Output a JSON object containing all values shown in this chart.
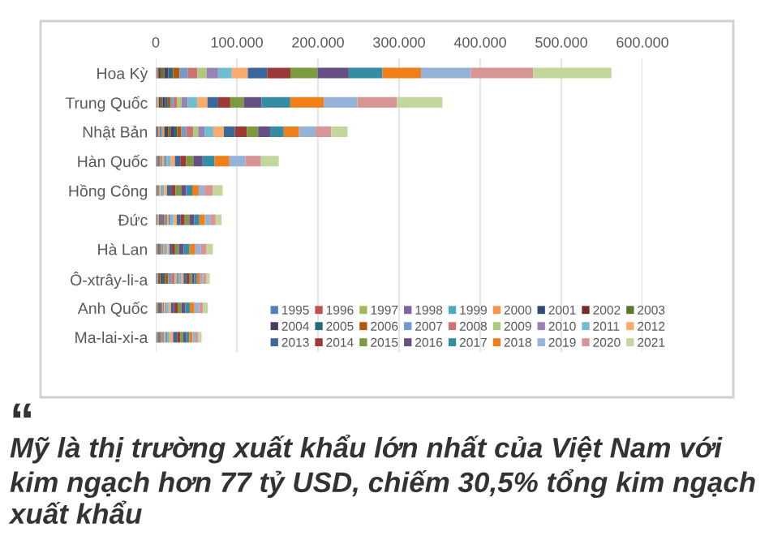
{
  "chart_data": {
    "type": "bar",
    "orientation": "horizontal",
    "stacked": true,
    "categories": [
      "Hoa Kỳ",
      "Trung Quốc",
      "Nhật Bản",
      "Hàn Quốc",
      "Hồng Công",
      "Đức",
      "Hà Lan",
      "Ô-xtrây-li-a",
      "Anh Quốc",
      "Ma-lai-xi-a"
    ],
    "xlim": [
      0,
      600000
    ],
    "xticks": [
      0,
      {
        "value": 100000,
        "label": "100.000"
      },
      {
        "value": 200000,
        "label": "200.000"
      },
      {
        "value": 300000,
        "label": "300.000"
      },
      {
        "value": 400000,
        "label": "400.000"
      },
      {
        "value": 500000,
        "label": "500.000"
      },
      {
        "value": 600000,
        "label": "600.000"
      }
    ],
    "grid": "x",
    "legend": "bottom right",
    "series": [
      {
        "name": "1995",
        "color": "#4f81bd",
        "values": [
          170,
          360,
          1460,
          240,
          150,
          400,
          150,
          50,
          120,
          250
        ]
      },
      {
        "name": "1996",
        "color": "#c0504d",
        "values": [
          200,
          340,
          1550,
          230,
          200,
          500,
          200,
          150,
          200,
          300
        ]
      },
      {
        "name": "1997",
        "color": "#9bbb59",
        "values": [
          290,
          470,
          1680,
          240,
          250,
          700,
          300,
          300,
          300,
          400
        ]
      },
      {
        "name": "1998",
        "color": "#8064a2",
        "values": [
          470,
          440,
          1510,
          230,
          250,
          850,
          400,
          500,
          450,
          450
        ]
      },
      {
        "name": "1999",
        "color": "#4bacc6",
        "values": [
          500,
          750,
          1790,
          320,
          300,
          900,
          450,
          900,
          500,
          400
        ]
      },
      {
        "name": "2000",
        "color": "#f79646",
        "values": [
          730,
          1540,
          2580,
          350,
          320,
          730,
          420,
          1270,
          480,
          410
        ]
      },
      {
        "name": "2001",
        "color": "#2c4d75",
        "values": [
          1070,
          1420,
          2510,
          410,
          330,
          720,
          470,
          1040,
          510,
          420
        ]
      },
      {
        "name": "2002",
        "color": "#772c2a",
        "values": [
          2450,
          1520,
          2440,
          470,
          330,
          880,
          470,
          1330,
          560,
          460
        ]
      },
      {
        "name": "2003",
        "color": "#5f7530",
        "values": [
          4560,
          1880,
          2910,
          490,
          360,
          850,
          540,
          1420,
          750,
          510
        ]
      },
      {
        "name": "2004",
        "color": "#4d3b62",
        "values": [
          5030,
          2900,
          3540,
          610,
          400,
          1090,
          630,
          1880,
          910,
          620
        ]
      },
      {
        "name": "2005",
        "color": "#276a7c",
        "values": [
          5920,
          3230,
          4340,
          660,
          450,
          1090,
          770,
          2720,
          1030,
          1030
        ]
      },
      {
        "name": "2006",
        "color": "#b65708",
        "values": [
          7850,
          3240,
          5240,
          840,
          500,
          1450,
          1030,
          3800,
          1200,
          1280
        ]
      },
      {
        "name": "2007",
        "color": "#729aca",
        "values": [
          10100,
          3650,
          6090,
          1240,
          650,
          1860,
          1470,
          3800,
          1500,
          1600
        ]
      },
      {
        "name": "2008",
        "color": "#cd7371",
        "values": [
          11870,
          4850,
          8470,
          1780,
          700,
          2100,
          1670,
          4350,
          1700,
          2000
        ]
      },
      {
        "name": "2009",
        "color": "#afc97a",
        "values": [
          11410,
          5400,
          6290,
          2080,
          1300,
          1880,
          1640,
          2280,
          1480,
          1800
        ]
      },
      {
        "name": "2010",
        "color": "#9983b5",
        "values": [
          14240,
          7310,
          7730,
          3090,
          1450,
          2370,
          1690,
          2700,
          1690,
          2090
        ]
      },
      {
        "name": "2011",
        "color": "#6fbdd1",
        "values": [
          16930,
          11610,
          10780,
          4720,
          2250,
          3370,
          2250,
          2520,
          2400,
          2830
        ]
      },
      {
        "name": "2012",
        "color": "#f9ab6b",
        "values": [
          19670,
          12840,
          13070,
          5580,
          3700,
          4100,
          2490,
          3250,
          3040,
          4500
        ]
      },
      {
        "name": "2013",
        "color": "#3a679c",
        "values": [
          23870,
          13180,
          13540,
          6690,
          5200,
          4700,
          3020,
          3530,
          3690,
          4930
        ]
      },
      {
        "name": "2014",
        "color": "#9c3a38",
        "values": [
          28660,
          14930,
          14680,
          7180,
          5270,
          5180,
          3760,
          3990,
          4510,
          3930
        ]
      },
      {
        "name": "2015",
        "color": "#7d9a3e",
        "values": [
          33450,
          16570,
          14100,
          8920,
          6960,
          5710,
          4760,
          2900,
          4620,
          3580
        ]
      },
      {
        "name": "2016",
        "color": "#664f82",
        "values": [
          38450,
          21960,
          14670,
          11410,
          6090,
          5970,
          6010,
          2870,
          4890,
          3340
        ]
      },
      {
        "name": "2017",
        "color": "#358ca5",
        "values": [
          41610,
          35460,
          16840,
          14820,
          7580,
          6360,
          7100,
          3290,
          5420,
          4210
        ]
      },
      {
        "name": "2018",
        "color": "#f07f1a",
        "values": [
          47530,
          41270,
          18830,
          18240,
          7960,
          6880,
          7080,
          3990,
          5780,
          4060
        ]
      },
      {
        "name": "2019",
        "color": "#95b3d7",
        "values": [
          61350,
          41410,
          20410,
          19720,
          7160,
          6550,
          6880,
          3490,
          5760,
          3600
        ]
      },
      {
        "name": "2020",
        "color": "#d99594",
        "values": [
          77080,
          48910,
          19280,
          19110,
          10400,
          6640,
          6990,
          3760,
          4960,
          3580
        ]
      },
      {
        "name": "2021",
        "color": "#c3d69b",
        "values": [
          96290,
          55940,
          20130,
          21950,
          11950,
          7270,
          7710,
          4410,
          5770,
          3880
        ]
      }
    ],
    "annotations": [
      "“",
      "Mỹ là thị trường xuất khẩu lớn nhất của Việt Nam với kim ngạch hơn 77 tỷ USD, chiếm 30,5% tổng kim ngạch xuất khẩu"
    ]
  }
}
